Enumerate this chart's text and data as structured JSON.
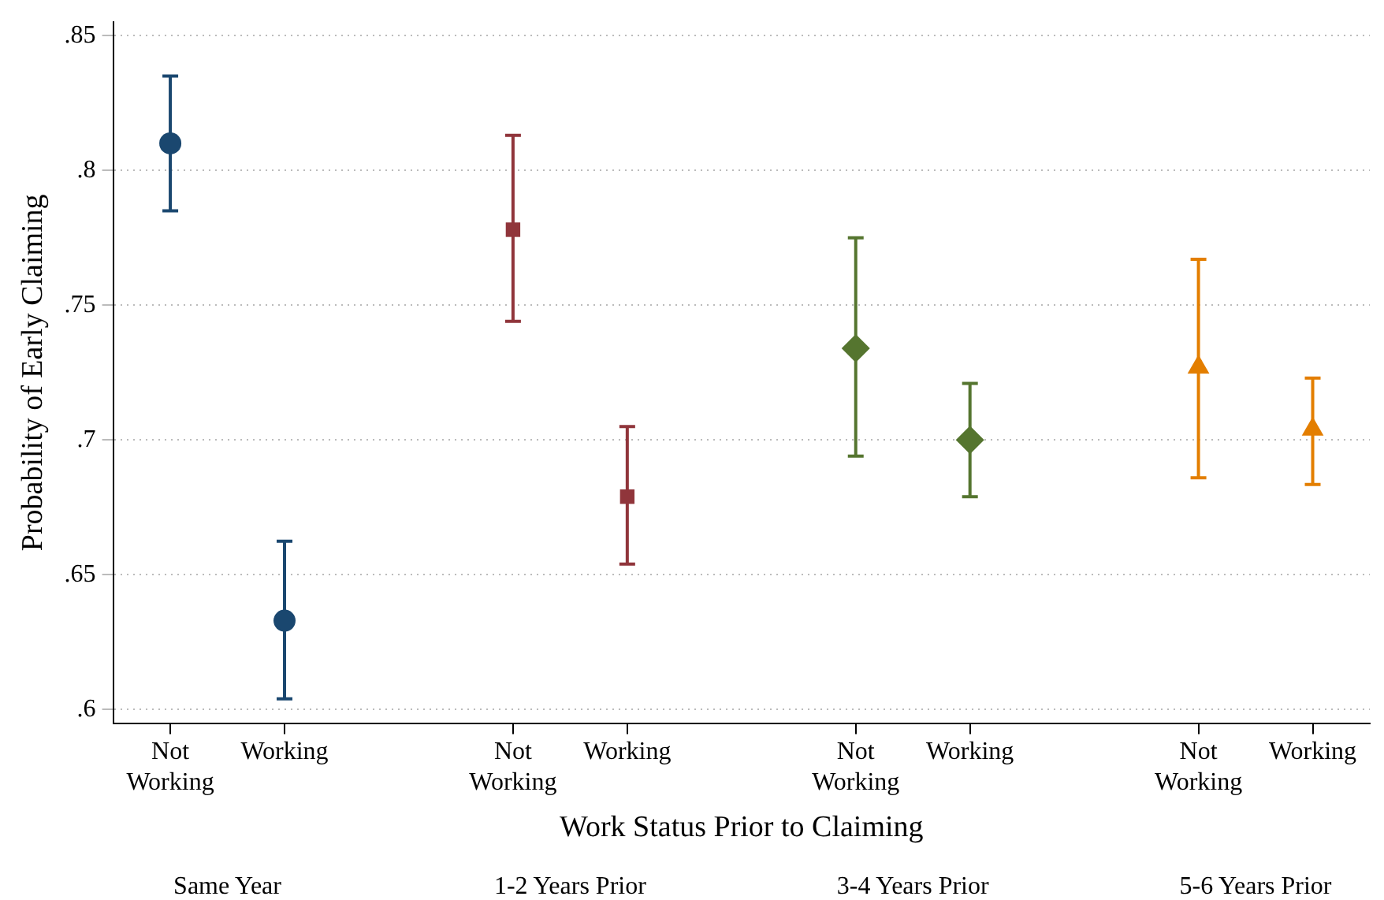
{
  "chart_data": {
    "type": "scatter",
    "xlabel": "Work Status Prior to Claiming",
    "ylabel": "Probability of Early Claiming",
    "categories": [
      "Not Working",
      "Working",
      null,
      "Not Working",
      "Working",
      null,
      "Not Working",
      "Working",
      null,
      "Not Working",
      "Working"
    ],
    "ylim": [
      0.595,
      0.855
    ],
    "yticks": [
      {
        "value": 0.6,
        "label": ".6"
      },
      {
        "value": 0.65,
        "label": ".65"
      },
      {
        "value": 0.7,
        "label": ".7"
      },
      {
        "value": 0.75,
        "label": ".75"
      },
      {
        "value": 0.8,
        "label": ".8"
      },
      {
        "value": 0.85,
        "label": ".85"
      }
    ],
    "grid": "y",
    "legend": false,
    "series": [
      {
        "color": "#1a476f",
        "marker": "circle",
        "values": [
          0.81,
          0.633,
          null,
          null,
          null,
          null,
          null,
          null,
          null,
          null,
          null
        ],
        "errors": [
          [
            0.785,
            0.835
          ],
          [
            0.604,
            0.6625
          ],
          null,
          null,
          null,
          null,
          null,
          null,
          null,
          null,
          null
        ]
      },
      {
        "color": "#90353b",
        "marker": "square",
        "values": [
          null,
          null,
          null,
          0.778,
          0.679,
          null,
          null,
          null,
          null,
          null,
          null
        ],
        "errors": [
          null,
          null,
          null,
          [
            0.744,
            0.813
          ],
          [
            0.654,
            0.705
          ],
          null,
          null,
          null,
          null,
          null,
          null
        ]
      },
      {
        "color": "#55752f",
        "marker": "diamond",
        "values": [
          null,
          null,
          null,
          null,
          null,
          null,
          0.734,
          0.7,
          null,
          null,
          null
        ],
        "errors": [
          null,
          null,
          null,
          null,
          null,
          null,
          [
            0.694,
            0.775
          ],
          [
            0.679,
            0.721
          ],
          null,
          null,
          null
        ]
      },
      {
        "color": "#e37e00",
        "marker": "triangle",
        "values": [
          null,
          null,
          null,
          null,
          null,
          null,
          null,
          null,
          null,
          0.727,
          0.704
        ],
        "errors": [
          null,
          null,
          null,
          null,
          null,
          null,
          null,
          null,
          null,
          [
            0.686,
            0.767
          ],
          [
            0.6835,
            0.723
          ]
        ]
      }
    ],
    "annotations": [
      "Same Year",
      "1-2 Years Prior",
      "3-4 Years Prior",
      "5-6 Years Prior"
    ]
  }
}
